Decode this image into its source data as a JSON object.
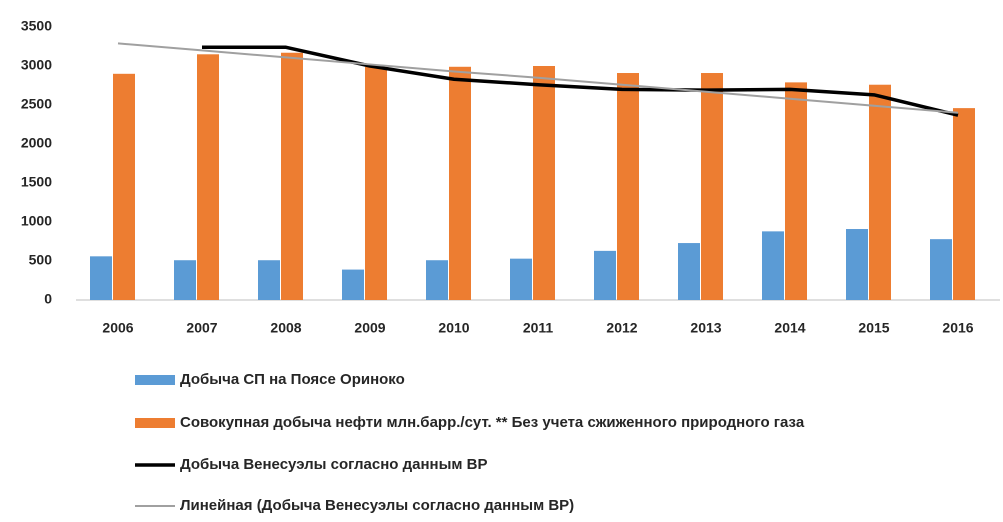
{
  "chart_data": {
    "type": "bar",
    "categories": [
      "2006",
      "2007",
      "2008",
      "2009",
      "2010",
      "2011",
      "2012",
      "2013",
      "2014",
      "2015",
      "2016"
    ],
    "ylim": [
      0,
      3500
    ],
    "yticks": [
      0,
      500,
      1000,
      1500,
      2000,
      2500,
      3000,
      3500
    ],
    "series": [
      {
        "name": "Добыча СП на Поясе Ориноко",
        "type": "bar",
        "color": "#5b9bd5",
        "values": [
          560,
          510,
          510,
          390,
          510,
          530,
          630,
          730,
          880,
          910,
          780
        ]
      },
      {
        "name": "Совокупная  добыча нефти млн.барр./сут. ** Без учета сжиженного природного газа",
        "type": "bar",
        "color": "#ed7d31",
        "values": [
          2900,
          3150,
          3170,
          2990,
          2990,
          3000,
          2910,
          2910,
          2790,
          2760,
          2460
        ]
      },
      {
        "name": "Добыча Венесуэлы согласно данным BP",
        "type": "line",
        "color": "#000000",
        "values": [
          null,
          3240,
          3240,
          3000,
          2830,
          2760,
          2700,
          2690,
          2700,
          2630,
          2370
        ]
      },
      {
        "name": "Линейная (Добыча Венесуэлы согласно данным BP)",
        "type": "line",
        "color": "#a0a0a0",
        "values": [
          3290,
          3200,
          3110,
          3020,
          2930,
          2850,
          2760,
          2670,
          2580,
          2490,
          2400
        ]
      }
    ]
  }
}
